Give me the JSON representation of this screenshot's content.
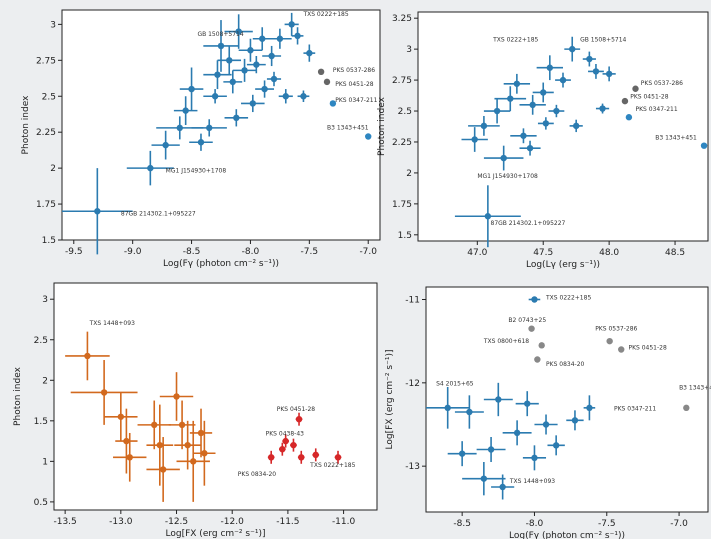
{
  "chart_data": [
    {
      "type": "scatter",
      "xlabel": "Log(Fγ (photon cm⁻² s⁻¹))",
      "ylabel": "Photon index",
      "xlim": [
        -9.6,
        -6.9
      ],
      "ylim": [
        1.5,
        3.1
      ],
      "xticks": [
        -9.5,
        -9.0,
        -8.5,
        -8.0,
        -7.5,
        -7.0
      ],
      "yticks": [
        1.5,
        1.75,
        2.0,
        2.25,
        2.5,
        2.75,
        3.0
      ],
      "grid": false,
      "series": [
        {
          "color": "#2b7bb0",
          "points": [
            {
              "x": -9.3,
              "y": 1.7,
              "xerr": 0.3,
              "yerr": 0.3
            },
            {
              "x": -8.85,
              "y": 2.0,
              "xerr": 0.2,
              "yerr": 0.12
            },
            {
              "x": -8.72,
              "y": 2.16,
              "xerr": 0.12,
              "yerr": 0.1
            },
            {
              "x": -8.6,
              "y": 2.28,
              "xerr": 0.2,
              "yerr": 0.08
            },
            {
              "x": -8.55,
              "y": 2.4,
              "xerr": 0.1,
              "yerr": 0.1
            },
            {
              "x": -8.5,
              "y": 2.55,
              "xerr": 0.1,
              "yerr": 0.15
            },
            {
              "x": -8.42,
              "y": 2.18,
              "xerr": 0.1,
              "yerr": 0.06
            },
            {
              "x": -8.35,
              "y": 2.28,
              "xerr": 0.15,
              "yerr": 0.06
            },
            {
              "x": -8.3,
              "y": 2.5,
              "xerr": 0.1,
              "yerr": 0.05
            },
            {
              "x": -8.28,
              "y": 2.65,
              "xerr": 0.12,
              "yerr": 0.1
            },
            {
              "x": -8.25,
              "y": 2.85,
              "xerr": 0.15,
              "yerr": 0.18
            },
            {
              "x": -8.18,
              "y": 2.75,
              "xerr": 0.1,
              "yerr": 0.1
            },
            {
              "x": -8.15,
              "y": 2.6,
              "xerr": 0.08,
              "yerr": 0.08
            },
            {
              "x": -8.12,
              "y": 2.35,
              "xerr": 0.1,
              "yerr": 0.06
            },
            {
              "x": -8.1,
              "y": 2.95,
              "xerr": 0.12,
              "yerr": 0.12
            },
            {
              "x": -8.05,
              "y": 2.68,
              "xerr": 0.1,
              "yerr": 0.08
            },
            {
              "x": -8.0,
              "y": 2.82,
              "xerr": 0.1,
              "yerr": 0.08
            },
            {
              "x": -7.98,
              "y": 2.45,
              "xerr": 0.1,
              "yerr": 0.06
            },
            {
              "x": -7.95,
              "y": 2.72,
              "xerr": 0.08,
              "yerr": 0.06
            },
            {
              "x": -7.9,
              "y": 2.9,
              "xerr": 0.08,
              "yerr": 0.08
            },
            {
              "x": -7.88,
              "y": 2.55,
              "xerr": 0.08,
              "yerr": 0.06
            },
            {
              "x": -7.82,
              "y": 2.78,
              "xerr": 0.08,
              "yerr": 0.07
            },
            {
              "x": -7.8,
              "y": 2.62,
              "xerr": 0.06,
              "yerr": 0.05
            },
            {
              "x": -7.75,
              "y": 2.9,
              "xerr": 0.1,
              "yerr": 0.07
            },
            {
              "x": -7.7,
              "y": 2.5,
              "xerr": 0.06,
              "yerr": 0.05
            },
            {
              "x": -7.65,
              "y": 3.0,
              "xerr": 0.06,
              "yerr": 0.08
            },
            {
              "x": -7.6,
              "y": 2.92,
              "xerr": 0.05,
              "yerr": 0.06
            },
            {
              "x": -7.55,
              "y": 2.5,
              "xerr": 0.05,
              "yerr": 0.04
            },
            {
              "x": -7.5,
              "y": 2.8,
              "xerr": 0.05,
              "yerr": 0.06
            }
          ]
        },
        {
          "color": "#666666",
          "points": [
            {
              "x": -7.4,
              "y": 2.67
            },
            {
              "x": -7.35,
              "y": 2.6
            }
          ]
        },
        {
          "color": "#2e86c1",
          "points": [
            {
              "x": -7.3,
              "y": 2.45
            },
            {
              "x": -7.0,
              "y": 2.22
            }
          ]
        }
      ],
      "annotations": [
        {
          "text": "TXS 0222+185",
          "x": -7.55,
          "y": 3.06
        },
        {
          "text": "GB 1508+5714",
          "x": -8.45,
          "y": 2.92
        },
        {
          "text": "PKS 0537-286",
          "x": -7.3,
          "y": 2.67
        },
        {
          "text": "PKS 0451-28",
          "x": -7.28,
          "y": 2.57
        },
        {
          "text": "PKS 0347-211",
          "x": -7.28,
          "y": 2.46
        },
        {
          "text": "B3 1343+451",
          "x": -7.35,
          "y": 2.27
        },
        {
          "text": "MG1 J154930+1708",
          "x": -8.72,
          "y": 1.97
        },
        {
          "text": "87GB 214302.1+095227",
          "x": -9.1,
          "y": 1.67
        }
      ]
    },
    {
      "type": "scatter",
      "xlabel": "Log(Lγ (erg s⁻¹))",
      "ylabel": "Photon index",
      "xlim": [
        46.55,
        48.75
      ],
      "ylim": [
        1.45,
        3.3
      ],
      "xticks": [
        47.0,
        47.5,
        48.0,
        48.5
      ],
      "yticks": [
        1.5,
        1.75,
        2.0,
        2.25,
        2.5,
        2.75,
        3.0,
        3.25
      ],
      "grid": false,
      "series": [
        {
          "color": "#2b7bb0",
          "points": [
            {
              "x": 47.08,
              "y": 1.65,
              "xerr": 0.25,
              "yerr": 0.25
            },
            {
              "x": 46.98,
              "y": 2.27,
              "xerr": 0.1,
              "yerr": 0.1
            },
            {
              "x": 47.05,
              "y": 2.38,
              "xerr": 0.12,
              "yerr": 0.08
            },
            {
              "x": 47.15,
              "y": 2.5,
              "xerr": 0.1,
              "yerr": 0.1
            },
            {
              "x": 47.2,
              "y": 2.12,
              "xerr": 0.15,
              "yerr": 0.1
            },
            {
              "x": 47.25,
              "y": 2.6,
              "xerr": 0.12,
              "yerr": 0.1
            },
            {
              "x": 47.3,
              "y": 2.72,
              "xerr": 0.1,
              "yerr": 0.08
            },
            {
              "x": 47.35,
              "y": 2.3,
              "xerr": 0.1,
              "yerr": 0.06
            },
            {
              "x": 47.4,
              "y": 2.2,
              "xerr": 0.08,
              "yerr": 0.06
            },
            {
              "x": 47.42,
              "y": 2.55,
              "xerr": 0.1,
              "yerr": 0.08
            },
            {
              "x": 47.5,
              "y": 2.65,
              "xerr": 0.08,
              "yerr": 0.08
            },
            {
              "x": 47.52,
              "y": 2.4,
              "xerr": 0.06,
              "yerr": 0.05
            },
            {
              "x": 47.55,
              "y": 2.85,
              "xerr": 0.1,
              "yerr": 0.1
            },
            {
              "x": 47.6,
              "y": 2.5,
              "xerr": 0.06,
              "yerr": 0.05
            },
            {
              "x": 47.65,
              "y": 2.75,
              "xerr": 0.06,
              "yerr": 0.06
            },
            {
              "x": 47.72,
              "y": 3.0,
              "xerr": 0.06,
              "yerr": 0.1
            },
            {
              "x": 47.75,
              "y": 2.38,
              "xerr": 0.05,
              "yerr": 0.05
            },
            {
              "x": 47.85,
              "y": 2.92,
              "xerr": 0.05,
              "yerr": 0.06
            },
            {
              "x": 47.9,
              "y": 2.82,
              "xerr": 0.06,
              "yerr": 0.06
            },
            {
              "x": 47.95,
              "y": 2.52,
              "xerr": 0.05,
              "yerr": 0.04
            },
            {
              "x": 48.0,
              "y": 2.8,
              "xerr": 0.05,
              "yerr": 0.06
            }
          ]
        },
        {
          "color": "#666666",
          "points": [
            {
              "x": 48.2,
              "y": 2.68
            },
            {
              "x": 48.12,
              "y": 2.58
            }
          ]
        },
        {
          "color": "#2e86c1",
          "points": [
            {
              "x": 48.15,
              "y": 2.45
            },
            {
              "x": 48.72,
              "y": 2.22
            }
          ]
        }
      ],
      "annotations": [
        {
          "text": "TXS 0222+185",
          "x": 47.12,
          "y": 3.06
        },
        {
          "text": "GB 1508+5714",
          "x": 47.78,
          "y": 3.06
        },
        {
          "text": "PKS 0537-286",
          "x": 48.24,
          "y": 2.71
        },
        {
          "text": "PKS 0451-28",
          "x": 48.16,
          "y": 2.6
        },
        {
          "text": "PKS 0347-211",
          "x": 48.2,
          "y": 2.5
        },
        {
          "text": "B3 1343+451",
          "x": 48.35,
          "y": 2.27
        },
        {
          "text": "MG1 J154930+1708",
          "x": 47.0,
          "y": 1.96
        },
        {
          "text": "87GB 214302.1+095227",
          "x": 47.1,
          "y": 1.58
        }
      ]
    },
    {
      "type": "scatter",
      "xlabel": "Log[FX (erg cm⁻² s⁻¹)]",
      "ylabel": "Photon index",
      "xlim": [
        -13.6,
        -10.7
      ],
      "ylim": [
        0.4,
        3.2
      ],
      "xticks": [
        -13.5,
        -13.0,
        -12.5,
        -12.0,
        -11.5,
        -11.0
      ],
      "yticks": [
        0.5,
        1.0,
        1.5,
        2.0,
        2.5,
        3.0
      ],
      "grid": false,
      "series": [
        {
          "color": "#d2691e",
          "points": [
            {
              "x": -13.3,
              "y": 2.3,
              "xerr": 0.2,
              "yerr": 0.3
            },
            {
              "x": -13.15,
              "y": 1.85,
              "xerr": 0.3,
              "yerr": 0.4
            },
            {
              "x": -13.0,
              "y": 1.55,
              "xerr": 0.15,
              "yerr": 0.3
            },
            {
              "x": -12.95,
              "y": 1.25,
              "xerr": 0.1,
              "yerr": 0.4
            },
            {
              "x": -12.92,
              "y": 1.05,
              "xerr": 0.15,
              "yerr": 0.3
            },
            {
              "x": -12.7,
              "y": 1.45,
              "xerr": 0.15,
              "yerr": 0.3
            },
            {
              "x": -12.65,
              "y": 1.2,
              "xerr": 0.12,
              "yerr": 0.5
            },
            {
              "x": -12.62,
              "y": 0.9,
              "xerr": 0.15,
              "yerr": 0.4
            },
            {
              "x": -12.5,
              "y": 1.8,
              "xerr": 0.15,
              "yerr": 0.3
            },
            {
              "x": -12.45,
              "y": 1.45,
              "xerr": 0.12,
              "yerr": 0.3
            },
            {
              "x": -12.4,
              "y": 1.2,
              "xerr": 0.12,
              "yerr": 0.3
            },
            {
              "x": -12.35,
              "y": 1.0,
              "xerr": 0.15,
              "yerr": 0.5
            },
            {
              "x": -12.28,
              "y": 1.35,
              "xerr": 0.1,
              "yerr": 0.3
            },
            {
              "x": -12.25,
              "y": 1.1,
              "xerr": 0.1,
              "yerr": 0.4
            }
          ]
        },
        {
          "color": "#d62728",
          "points": [
            {
              "x": -11.65,
              "y": 1.05,
              "xerr": 0.03,
              "yerr": 0.08
            },
            {
              "x": -11.55,
              "y": 1.15,
              "xerr": 0.03,
              "yerr": 0.08
            },
            {
              "x": -11.52,
              "y": 1.25,
              "xerr": 0.03,
              "yerr": 0.08
            },
            {
              "x": -11.45,
              "y": 1.2,
              "xerr": 0.03,
              "yerr": 0.08
            },
            {
              "x": -11.4,
              "y": 1.52,
              "xerr": 0.03,
              "yerr": 0.08
            },
            {
              "x": -11.38,
              "y": 1.05,
              "xerr": 0.03,
              "yerr": 0.08
            },
            {
              "x": -11.25,
              "y": 1.08,
              "xerr": 0.03,
              "yerr": 0.08
            },
            {
              "x": -11.05,
              "y": 1.05,
              "xerr": 0.03,
              "yerr": 0.08
            }
          ]
        }
      ],
      "annotations": [
        {
          "text": "TXS 1448+093",
          "x": -13.28,
          "y": 2.68
        },
        {
          "text": "PKS 0451-28",
          "x": -11.6,
          "y": 1.62
        },
        {
          "text": "PKS 0438-43",
          "x": -11.7,
          "y": 1.32
        },
        {
          "text": "PKS 0834-20",
          "x": -11.95,
          "y": 0.82
        },
        {
          "text": "TXS 0222+185",
          "x": -11.3,
          "y": 0.93
        }
      ]
    },
    {
      "type": "scatter",
      "xlabel": "Log(Fγ (photon cm⁻² s⁻¹))",
      "ylabel": "Log[FX (erg cm⁻² s⁻¹)]",
      "xlim": [
        -8.75,
        -6.8
      ],
      "ylim": [
        -13.55,
        -10.85
      ],
      "xticks": [
        -8.5,
        -8.0,
        -7.5,
        -7.0
      ],
      "yticks": [
        -13,
        -12,
        -11
      ],
      "grid": false,
      "series": [
        {
          "color": "#2b7bb0",
          "points": [
            {
              "x": -8.6,
              "y": -12.3,
              "xerr": 0.15,
              "yerr": 0.25
            },
            {
              "x": -8.5,
              "y": -12.85,
              "xerr": 0.1,
              "yerr": 0.15
            },
            {
              "x": -8.45,
              "y": -12.35,
              "xerr": 0.1,
              "yerr": 0.2
            },
            {
              "x": -8.35,
              "y": -13.15,
              "xerr": 0.15,
              "yerr": 0.2
            },
            {
              "x": -8.3,
              "y": -12.8,
              "xerr": 0.1,
              "yerr": 0.15
            },
            {
              "x": -8.25,
              "y": -12.2,
              "xerr": 0.1,
              "yerr": 0.2
            },
            {
              "x": -8.22,
              "y": -13.25,
              "xerr": 0.08,
              "yerr": 0.15
            },
            {
              "x": -8.12,
              "y": -12.6,
              "xerr": 0.1,
              "yerr": 0.15
            },
            {
              "x": -8.05,
              "y": -12.25,
              "xerr": 0.08,
              "yerr": 0.15
            },
            {
              "x": -8.0,
              "y": -12.9,
              "xerr": 0.08,
              "yerr": 0.15
            },
            {
              "x": -7.92,
              "y": -12.5,
              "xerr": 0.08,
              "yerr": 0.12
            },
            {
              "x": -7.85,
              "y": -12.75,
              "xerr": 0.06,
              "yerr": 0.12
            },
            {
              "x": -7.72,
              "y": -12.45,
              "xerr": 0.06,
              "yerr": 0.12
            },
            {
              "x": -7.62,
              "y": -12.3,
              "xerr": 0.04,
              "yerr": 0.15
            }
          ]
        },
        {
          "color": "#2b7bb0",
          "points": [
            {
              "x": -8.0,
              "y": -11.0,
              "xerr": 0.04,
              "yerr": 0.03
            }
          ]
        },
        {
          "color": "#888888",
          "points": [
            {
              "x": -8.02,
              "y": -11.35
            },
            {
              "x": -7.95,
              "y": -11.55
            },
            {
              "x": -7.98,
              "y": -11.72
            },
            {
              "x": -7.48,
              "y": -11.5
            },
            {
              "x": -7.4,
              "y": -11.6
            },
            {
              "x": -6.95,
              "y": -12.3
            }
          ]
        }
      ],
      "annotations": [
        {
          "text": "TXS 0222+185",
          "x": -7.92,
          "y": -11.0
        },
        {
          "text": "B2 0743+25",
          "x": -8.18,
          "y": -11.27
        },
        {
          "text": "TXS 0800+618",
          "x": -8.35,
          "y": -11.52
        },
        {
          "text": "PKS 0834-20",
          "x": -7.92,
          "y": -11.8
        },
        {
          "text": "PKS 0537-286",
          "x": -7.58,
          "y": -11.37
        },
        {
          "text": "PKS 0451-28",
          "x": -7.35,
          "y": -11.6
        },
        {
          "text": "S4 2015+65",
          "x": -8.68,
          "y": -12.03
        },
        {
          "text": "PKS 0347-211",
          "x": -7.45,
          "y": -12.33
        },
        {
          "text": "B3 1343+451",
          "x": -7.0,
          "y": -12.08
        },
        {
          "text": "TXS 1448+093",
          "x": -8.17,
          "y": -13.2
        }
      ]
    }
  ]
}
